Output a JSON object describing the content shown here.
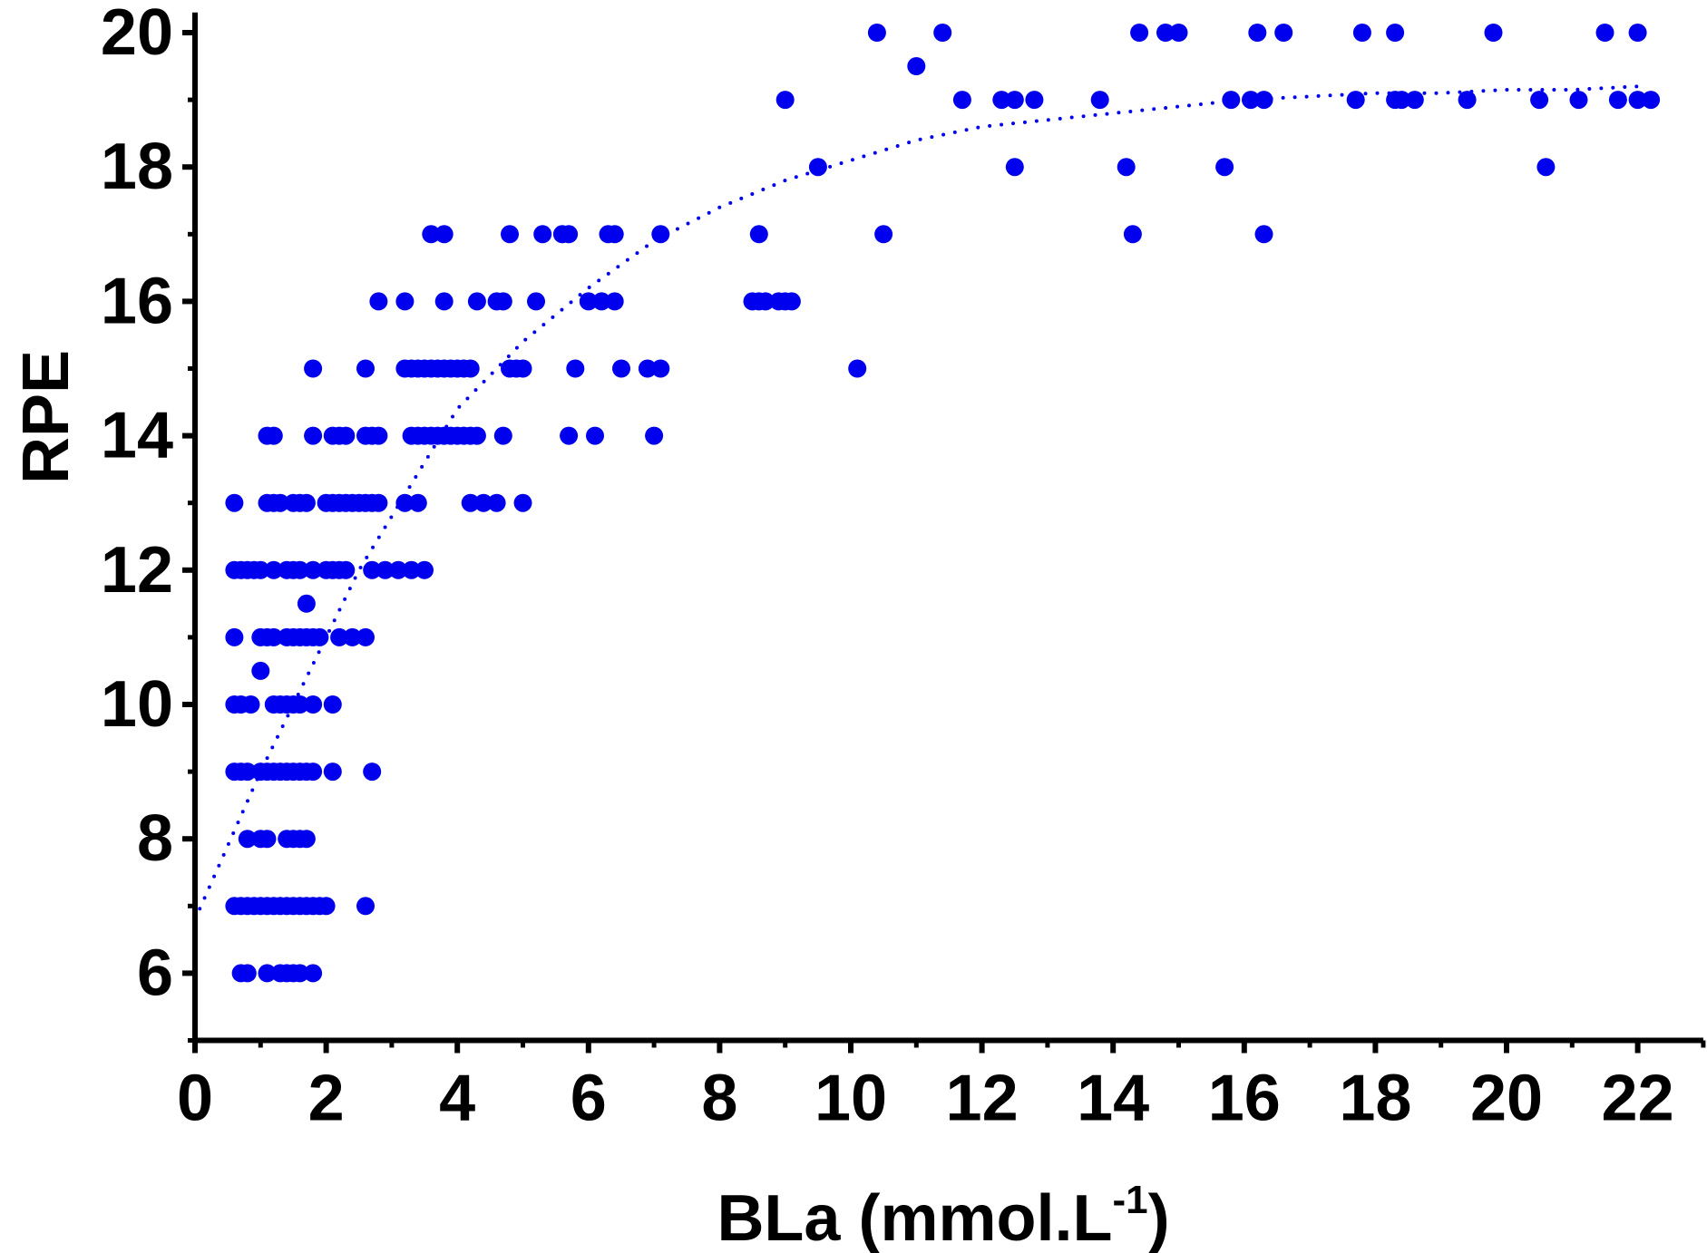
{
  "chart_data": {
    "type": "scatter",
    "title": "",
    "xlabel": "BLa (mmol.L",
    "xlabel_superscript": "-1",
    "xlabel_suffix": ")",
    "ylabel": "RPE",
    "xlim": [
      0,
      23
    ],
    "ylim": [
      5,
      20.3
    ],
    "xticks": [
      0,
      2,
      4,
      6,
      8,
      10,
      12,
      14,
      16,
      18,
      20,
      22
    ],
    "yticks": [
      6,
      8,
      10,
      12,
      14,
      16,
      18,
      20
    ],
    "grid": false,
    "legend": "none",
    "colors": {
      "points": "#0000ee",
      "trend": "#0000ee",
      "axes": "#000000"
    },
    "points": [
      [
        0.6,
        13
      ],
      [
        0.6,
        12
      ],
      [
        0.6,
        11
      ],
      [
        0.6,
        10
      ],
      [
        0.6,
        9
      ],
      [
        0.6,
        7
      ],
      [
        0.7,
        6
      ],
      [
        0.8,
        6
      ],
      [
        0.7,
        12
      ],
      [
        0.8,
        12
      ],
      [
        0.7,
        10
      ],
      [
        0.85,
        10
      ],
      [
        0.7,
        9
      ],
      [
        0.8,
        9
      ],
      [
        0.7,
        7
      ],
      [
        0.8,
        7
      ],
      [
        0.9,
        7
      ],
      [
        0.8,
        8
      ],
      [
        1.0,
        8
      ],
      [
        1.1,
        8
      ],
      [
        0.9,
        12
      ],
      [
        1.0,
        12
      ],
      [
        1.0,
        11
      ],
      [
        1.0,
        10.5
      ],
      [
        1.0,
        9
      ],
      [
        1.1,
        9
      ],
      [
        1.0,
        7
      ],
      [
        1.1,
        7
      ],
      [
        1.2,
        7
      ],
      [
        1.1,
        14
      ],
      [
        1.2,
        14
      ],
      [
        1.1,
        13
      ],
      [
        1.2,
        13
      ],
      [
        1.2,
        12
      ],
      [
        1.1,
        11
      ],
      [
        1.2,
        11
      ],
      [
        1.2,
        10
      ],
      [
        1.2,
        9
      ],
      [
        1.3,
        9
      ],
      [
        1.3,
        7
      ],
      [
        1.1,
        6
      ],
      [
        1.3,
        6
      ],
      [
        1.4,
        6
      ],
      [
        1.5,
        6
      ],
      [
        1.6,
        6
      ],
      [
        1.8,
        6
      ],
      [
        1.3,
        13
      ],
      [
        1.5,
        13
      ],
      [
        1.6,
        13
      ],
      [
        1.7,
        13
      ],
      [
        1.4,
        12
      ],
      [
        1.5,
        12
      ],
      [
        1.6,
        12
      ],
      [
        1.4,
        11
      ],
      [
        1.5,
        11
      ],
      [
        1.6,
        11
      ],
      [
        1.7,
        11
      ],
      [
        1.3,
        10
      ],
      [
        1.4,
        10
      ],
      [
        1.5,
        10
      ],
      [
        1.6,
        10
      ],
      [
        1.8,
        10
      ],
      [
        1.4,
        9
      ],
      [
        1.5,
        9
      ],
      [
        1.6,
        9
      ],
      [
        1.7,
        9
      ],
      [
        1.8,
        9
      ],
      [
        1.4,
        8
      ],
      [
        1.5,
        8
      ],
      [
        1.6,
        8
      ],
      [
        1.7,
        8
      ],
      [
        1.4,
        7
      ],
      [
        1.5,
        7
      ],
      [
        1.6,
        7
      ],
      [
        1.7,
        7
      ],
      [
        1.8,
        7
      ],
      [
        1.9,
        7
      ],
      [
        2.0,
        7
      ],
      [
        1.7,
        11.5
      ],
      [
        1.8,
        15
      ],
      [
        1.8,
        14
      ],
      [
        1.8,
        12
      ],
      [
        1.8,
        11
      ],
      [
        1.9,
        11
      ],
      [
        2.0,
        12
      ],
      [
        2.1,
        12
      ],
      [
        2.2,
        12
      ],
      [
        2.3,
        12
      ],
      [
        2.1,
        14
      ],
      [
        2.2,
        14
      ],
      [
        2.3,
        14
      ],
      [
        2.0,
        13
      ],
      [
        2.1,
        13
      ],
      [
        2.2,
        13
      ],
      [
        2.3,
        13
      ],
      [
        2.4,
        13
      ],
      [
        2.5,
        13
      ],
      [
        2.6,
        13
      ],
      [
        2.7,
        13
      ],
      [
        2.8,
        13
      ],
      [
        2.2,
        11
      ],
      [
        2.4,
        11
      ],
      [
        2.6,
        11
      ],
      [
        2.1,
        10
      ],
      [
        2.1,
        9
      ],
      [
        2.7,
        9
      ],
      [
        2.6,
        7
      ],
      [
        2.6,
        15
      ],
      [
        2.6,
        14
      ],
      [
        2.7,
        14
      ],
      [
        2.8,
        14
      ],
      [
        2.8,
        16
      ],
      [
        2.7,
        12
      ],
      [
        2.9,
        12
      ],
      [
        3.1,
        12
      ],
      [
        3.3,
        12
      ],
      [
        3.5,
        12
      ],
      [
        3.2,
        13
      ],
      [
        3.4,
        13
      ],
      [
        3.2,
        16
      ],
      [
        3.2,
        15
      ],
      [
        3.3,
        15
      ],
      [
        3.4,
        15
      ],
      [
        3.5,
        15
      ],
      [
        3.6,
        15
      ],
      [
        3.7,
        15
      ],
      [
        3.8,
        15
      ],
      [
        3.9,
        15
      ],
      [
        4.0,
        15
      ],
      [
        4.1,
        15
      ],
      [
        4.2,
        15
      ],
      [
        3.3,
        14
      ],
      [
        3.4,
        14
      ],
      [
        3.5,
        14
      ],
      [
        3.6,
        14
      ],
      [
        3.7,
        14
      ],
      [
        3.8,
        14
      ],
      [
        3.9,
        14
      ],
      [
        4.0,
        14
      ],
      [
        4.1,
        14
      ],
      [
        4.2,
        14
      ],
      [
        4.3,
        14
      ],
      [
        3.6,
        17
      ],
      [
        3.8,
        17
      ],
      [
        3.8,
        16
      ],
      [
        4.3,
        16
      ],
      [
        4.2,
        13
      ],
      [
        4.4,
        13
      ],
      [
        4.6,
        13
      ],
      [
        4.6,
        16
      ],
      [
        4.7,
        16
      ],
      [
        4.7,
        14
      ],
      [
        4.8,
        15
      ],
      [
        4.9,
        15
      ],
      [
        5.0,
        15
      ],
      [
        4.8,
        17
      ],
      [
        5.0,
        13
      ],
      [
        5.2,
        16
      ],
      [
        5.3,
        17
      ],
      [
        5.6,
        17
      ],
      [
        5.7,
        17
      ],
      [
        5.8,
        15
      ],
      [
        5.7,
        14
      ],
      [
        6.0,
        16
      ],
      [
        6.2,
        16
      ],
      [
        6.4,
        16
      ],
      [
        6.1,
        14
      ],
      [
        6.3,
        17
      ],
      [
        6.4,
        17
      ],
      [
        6.5,
        15
      ],
      [
        6.9,
        15
      ],
      [
        7.1,
        15
      ],
      [
        7.0,
        14
      ],
      [
        7.1,
        17
      ],
      [
        8.6,
        17
      ],
      [
        8.5,
        16
      ],
      [
        8.6,
        16
      ],
      [
        8.7,
        16
      ],
      [
        8.9,
        16
      ],
      [
        9.0,
        16
      ],
      [
        9.1,
        16
      ],
      [
        9.0,
        19
      ],
      [
        9.5,
        18
      ],
      [
        10.1,
        15
      ],
      [
        10.4,
        20
      ],
      [
        10.5,
        17
      ],
      [
        11.0,
        19.5
      ],
      [
        11.4,
        20
      ],
      [
        11.7,
        19
      ],
      [
        12.3,
        19
      ],
      [
        12.5,
        19
      ],
      [
        12.5,
        18
      ],
      [
        12.8,
        19
      ],
      [
        13.8,
        19
      ],
      [
        14.2,
        18
      ],
      [
        14.3,
        17
      ],
      [
        14.4,
        20
      ],
      [
        14.8,
        20
      ],
      [
        15.0,
        20
      ],
      [
        15.7,
        18
      ],
      [
        15.8,
        19
      ],
      [
        16.1,
        19
      ],
      [
        16.2,
        20
      ],
      [
        16.3,
        17
      ],
      [
        16.3,
        19
      ],
      [
        16.6,
        20
      ],
      [
        17.7,
        19
      ],
      [
        17.8,
        20
      ],
      [
        18.3,
        20
      ],
      [
        18.3,
        19
      ],
      [
        18.4,
        19
      ],
      [
        18.6,
        19
      ],
      [
        19.4,
        19
      ],
      [
        19.8,
        20
      ],
      [
        20.5,
        19
      ],
      [
        20.6,
        18
      ],
      [
        21.1,
        19
      ],
      [
        21.5,
        20
      ],
      [
        21.7,
        19
      ],
      [
        22.0,
        20
      ],
      [
        22.0,
        19
      ],
      [
        22.2,
        19
      ]
    ],
    "trendline": {
      "style": "dotted",
      "x": [
        0,
        0.5,
        1,
        1.5,
        2,
        2.5,
        3,
        3.5,
        4,
        5,
        6,
        7,
        8,
        9,
        10,
        11,
        12,
        13,
        14,
        15,
        16,
        17,
        18,
        19,
        20,
        21,
        22
      ],
      "y": [
        6.8,
        7.9,
        9.0,
        10.0,
        11.0,
        12.0,
        12.8,
        13.6,
        14.4,
        15.4,
        16.2,
        16.9,
        17.4,
        17.8,
        18.1,
        18.4,
        18.6,
        18.7,
        18.8,
        18.9,
        19.0,
        19.05,
        19.1,
        19.1,
        19.15,
        19.15,
        19.2
      ]
    }
  }
}
